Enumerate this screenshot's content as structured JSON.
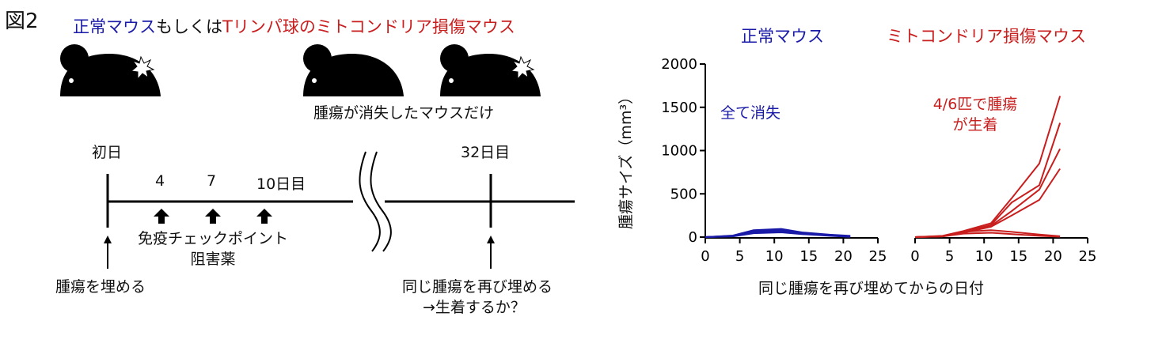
{
  "figure_label": "図2",
  "header": {
    "part1": "正常マウス",
    "part2": "もしくは",
    "part3": "Tリンパ球のミトコンドリア損傷マウス"
  },
  "mice_caption": "腫瘍が消失したマウスだけ",
  "timeline": {
    "day0_label": "初日",
    "day4": "4",
    "day7": "7",
    "day10": "10日目",
    "day32": "32日目",
    "treatment_line1": "免疫チェックポイント",
    "treatment_line2": "阻害薬",
    "implant_label": "腫瘍を埋める",
    "rechallenge_line1": "同じ腫瘍を再び埋める",
    "rechallenge_line2": "→生着するか？"
  },
  "colors": {
    "blue": "#1a1aa8",
    "red": "#c81e1e"
  },
  "chart_data": [
    {
      "type": "line",
      "title": "正常マウス",
      "annotation": "全て消失",
      "ylabel": "腫瘍サイズ（mm³）",
      "xlabel": "同じ腫瘍を再び埋めてからの日付",
      "xlim": [
        0,
        25
      ],
      "ylim": [
        0,
        2000
      ],
      "xticks": [
        "0",
        "5",
        "10",
        "15",
        "20",
        "25"
      ],
      "yticks": [
        "0",
        "500",
        "1000",
        "1500",
        "2000"
      ],
      "color": "#1a1aa8",
      "series": [
        {
          "x": [
            0,
            4,
            7,
            11,
            14,
            18,
            21
          ],
          "y": [
            0,
            15,
            70,
            80,
            50,
            25,
            10
          ]
        },
        {
          "x": [
            0,
            4,
            7,
            11,
            14,
            18,
            21
          ],
          "y": [
            0,
            12,
            60,
            70,
            45,
            20,
            8
          ]
        },
        {
          "x": [
            0,
            4,
            7,
            11,
            14,
            18,
            21
          ],
          "y": [
            0,
            10,
            55,
            65,
            40,
            18,
            5
          ]
        },
        {
          "x": [
            0,
            4,
            7,
            11,
            14,
            18,
            21
          ],
          "y": [
            0,
            14,
            65,
            75,
            50,
            25,
            12
          ]
        },
        {
          "x": [
            0,
            4,
            7,
            11,
            14,
            18,
            21
          ],
          "y": [
            0,
            18,
            80,
            95,
            55,
            28,
            15
          ]
        },
        {
          "x": [
            0,
            4,
            7,
            11,
            14,
            18,
            21
          ],
          "y": [
            0,
            8,
            45,
            55,
            35,
            15,
            3
          ]
        }
      ]
    },
    {
      "type": "line",
      "title": "ミトコンドリア損傷マウス",
      "annotation_line1": "4/6匹で腫瘍",
      "annotation_line2": "が生着",
      "xlim": [
        0,
        25
      ],
      "ylim": [
        0,
        2000
      ],
      "xticks": [
        "0",
        "5",
        "10",
        "15",
        "20",
        "25"
      ],
      "color": "#c81e1e",
      "series": [
        {
          "x": [
            0,
            4,
            7,
            11,
            14,
            18,
            21
          ],
          "y": [
            0,
            15,
            70,
            160,
            450,
            850,
            1630
          ]
        },
        {
          "x": [
            0,
            4,
            7,
            11,
            14,
            18,
            21
          ],
          "y": [
            0,
            12,
            60,
            140,
            400,
            600,
            1320
          ]
        },
        {
          "x": [
            0,
            4,
            7,
            11,
            14,
            18,
            21
          ],
          "y": [
            0,
            10,
            55,
            130,
            300,
            550,
            1020
          ]
        },
        {
          "x": [
            0,
            4,
            7,
            11,
            14,
            18,
            21
          ],
          "y": [
            0,
            8,
            50,
            120,
            250,
            430,
            790
          ]
        },
        {
          "x": [
            0,
            4,
            7,
            11,
            14,
            18,
            21
          ],
          "y": [
            0,
            10,
            60,
            80,
            60,
            30,
            10
          ]
        },
        {
          "x": [
            0,
            4,
            7,
            11,
            14,
            18,
            21
          ],
          "y": [
            0,
            8,
            40,
            50,
            35,
            15,
            5
          ]
        }
      ]
    }
  ]
}
